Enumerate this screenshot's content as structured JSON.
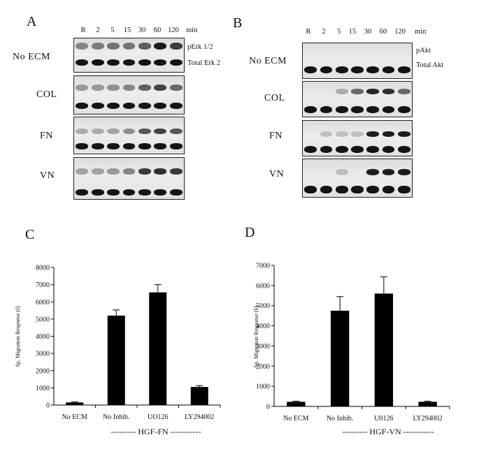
{
  "panel_letters": {
    "a": "A",
    "b": "B",
    "c": "C",
    "d": "D"
  },
  "blot_a": {
    "timepoints": [
      "R",
      "2",
      "5",
      "15",
      "30",
      "60",
      "120"
    ],
    "unit": "min",
    "conditions": [
      "No ECM",
      "COL",
      "FN",
      "VN"
    ],
    "markers": {
      "phospho": "pErk 1/2",
      "total": "Total Erk 2"
    }
  },
  "blot_b": {
    "timepoints": [
      "R",
      "2",
      "5",
      "15",
      "30",
      "60",
      "120"
    ],
    "unit": "min",
    "conditions": [
      "No ECM",
      "COL",
      "FN",
      "VN"
    ],
    "markers": {
      "phospho": "pAkt",
      "total": "Total Akt"
    }
  },
  "chart_data": [
    {
      "type": "bar",
      "categories": [
        "No ECM",
        "No Inhib.",
        "UO126",
        "LY294002"
      ],
      "values": [
        150,
        5200,
        6550,
        1050
      ],
      "errors": [
        30,
        330,
        450,
        80
      ],
      "title": "",
      "xlabel": "--------- HGF-FN -----------",
      "ylabel": "Sp. Migration Response (f)",
      "ylim": [
        0,
        8000
      ],
      "yticks": [
        0,
        1000,
        2000,
        3000,
        4000,
        5000,
        6000,
        7000,
        8000
      ],
      "grid": false,
      "bar_color": "#000000"
    },
    {
      "type": "bar",
      "categories": [
        "No ECM",
        "No Inhib.",
        "U0126",
        "LY294002"
      ],
      "values": [
        230,
        4750,
        5600,
        230
      ],
      "errors": [
        30,
        700,
        830,
        30
      ],
      "title": "",
      "xlabel": "--------- HGF-VN -----------",
      "ylabel": "Sp. Migration Response (F)",
      "ylim": [
        0,
        7000
      ],
      "yticks": [
        0,
        1000,
        2000,
        3000,
        4000,
        5000,
        6000,
        7000
      ],
      "grid": false,
      "bar_color": "#000000"
    }
  ]
}
